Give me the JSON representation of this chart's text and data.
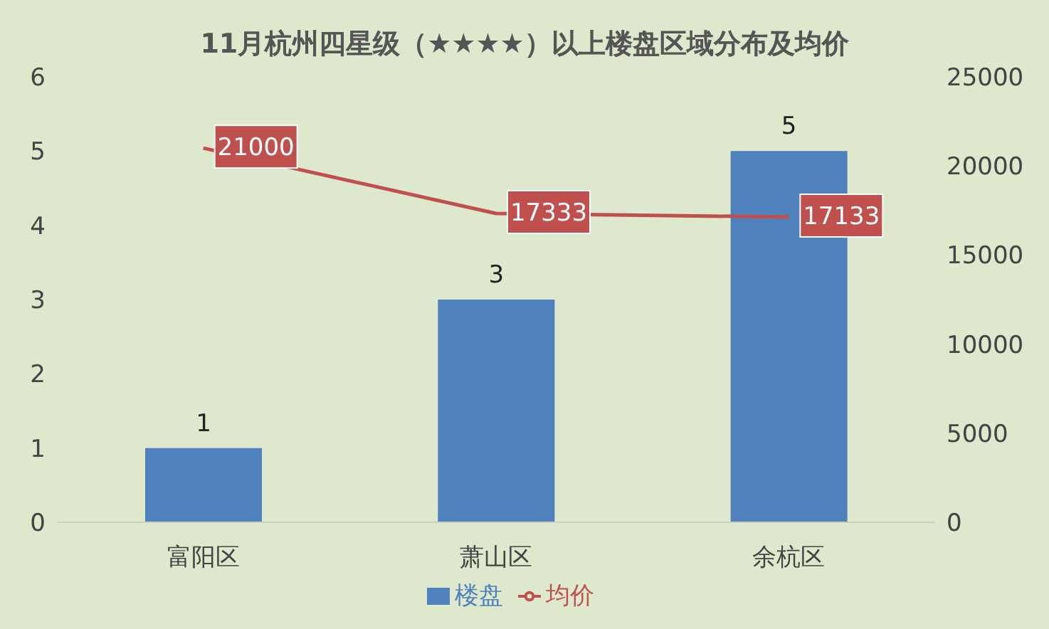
{
  "chart_data": {
    "type": "bar",
    "title": "11月杭州四星级（★★★★）以上楼盘区域分布及均价",
    "categories": [
      "富阳区",
      "萧山区",
      "余杭区"
    ],
    "series": [
      {
        "name": "楼盘",
        "color": "#4f81bd",
        "values": [
          1,
          3,
          5
        ]
      },
      {
        "name": "均价",
        "type": "line",
        "axis": "y2",
        "color": "#c0504d",
        "values": [
          21000,
          17333,
          17133
        ]
      }
    ],
    "ylim": [
      0,
      6
    ],
    "yticks": [
      0,
      1,
      2,
      3,
      4,
      5,
      6
    ],
    "y2lim": [
      0,
      25000
    ],
    "y2ticks": [
      0,
      5000,
      10000,
      15000,
      20000,
      25000
    ],
    "data_labels": true,
    "legend": "bottom",
    "grid": false,
    "marker": "none"
  }
}
